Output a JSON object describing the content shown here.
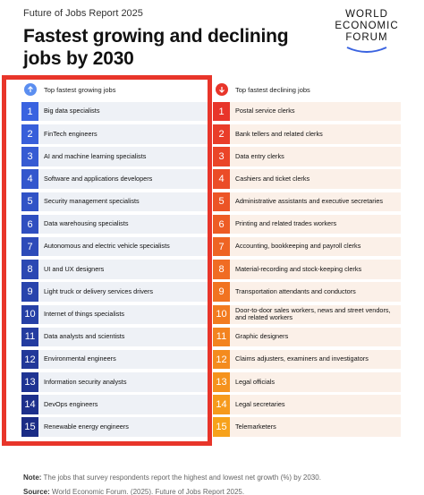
{
  "header": {
    "subtitle": "Future of Jobs Report 2025",
    "title": "Fastest growing and declining jobs by 2030",
    "logo": [
      "WORLD",
      "ECONOMIC",
      "FORUM"
    ]
  },
  "colors": {
    "growing_start": "#3a63e0",
    "growing_end": "#1b2c86",
    "declining_start": "#e8352a",
    "declining_end": "#f7a21b",
    "highlight": "#e8352a"
  },
  "chart_data": {
    "type": "table",
    "columns": [
      {
        "heading": "Top fastest growing jobs",
        "icon": "arrow-up-icon",
        "ranks": [
          "1",
          "2",
          "3",
          "4",
          "5",
          "6",
          "7",
          "8",
          "9",
          "10",
          "11",
          "12",
          "13",
          "14",
          "15"
        ],
        "jobs": [
          "Big data specialists",
          "FinTech engineers",
          "AI and machine learning specialists",
          "Software and applications developers",
          "Security management specialists",
          "Data warehousing specialists",
          "Autonomous and electric vehicle specialists",
          "UI and UX designers",
          "Light truck or delivery services drivers",
          "Internet of things specialists",
          "Data analysts and scientists",
          "Environmental engineers",
          "Information security analysts",
          "DevOps engineers",
          "Renewable energy engineers"
        ]
      },
      {
        "heading": "Top fastest declining jobs",
        "icon": "arrow-down-icon",
        "ranks": [
          "1",
          "2",
          "3",
          "4",
          "5",
          "6",
          "7",
          "8",
          "9",
          "10",
          "11",
          "12",
          "13",
          "14",
          "15"
        ],
        "jobs": [
          "Postal service clerks",
          "Bank tellers and related clerks",
          "Data entry clerks",
          "Cashiers and ticket clerks",
          "Administrative assistants and executive secretaries",
          "Printing and related trades workers",
          "Accounting, bookkeeping and payroll clerks",
          "Material-recording and stock-keeping clerks",
          "Transportation attendants and conductors",
          "Door-to-door sales workers, news and street vendors, and related workers",
          "Graphic designers",
          "Claims adjusters, examiners and investigators",
          "Legal officials",
          "Legal secretaries",
          "Telemarketers"
        ]
      }
    ]
  },
  "footer": {
    "note_label": "Note:",
    "note_text": "The jobs that survey respondents report the highest and lowest net growth (%) by 2030.",
    "source_label": "Source:",
    "source_text": "World Economic Forum. (2025). Future of Jobs Report 2025."
  }
}
